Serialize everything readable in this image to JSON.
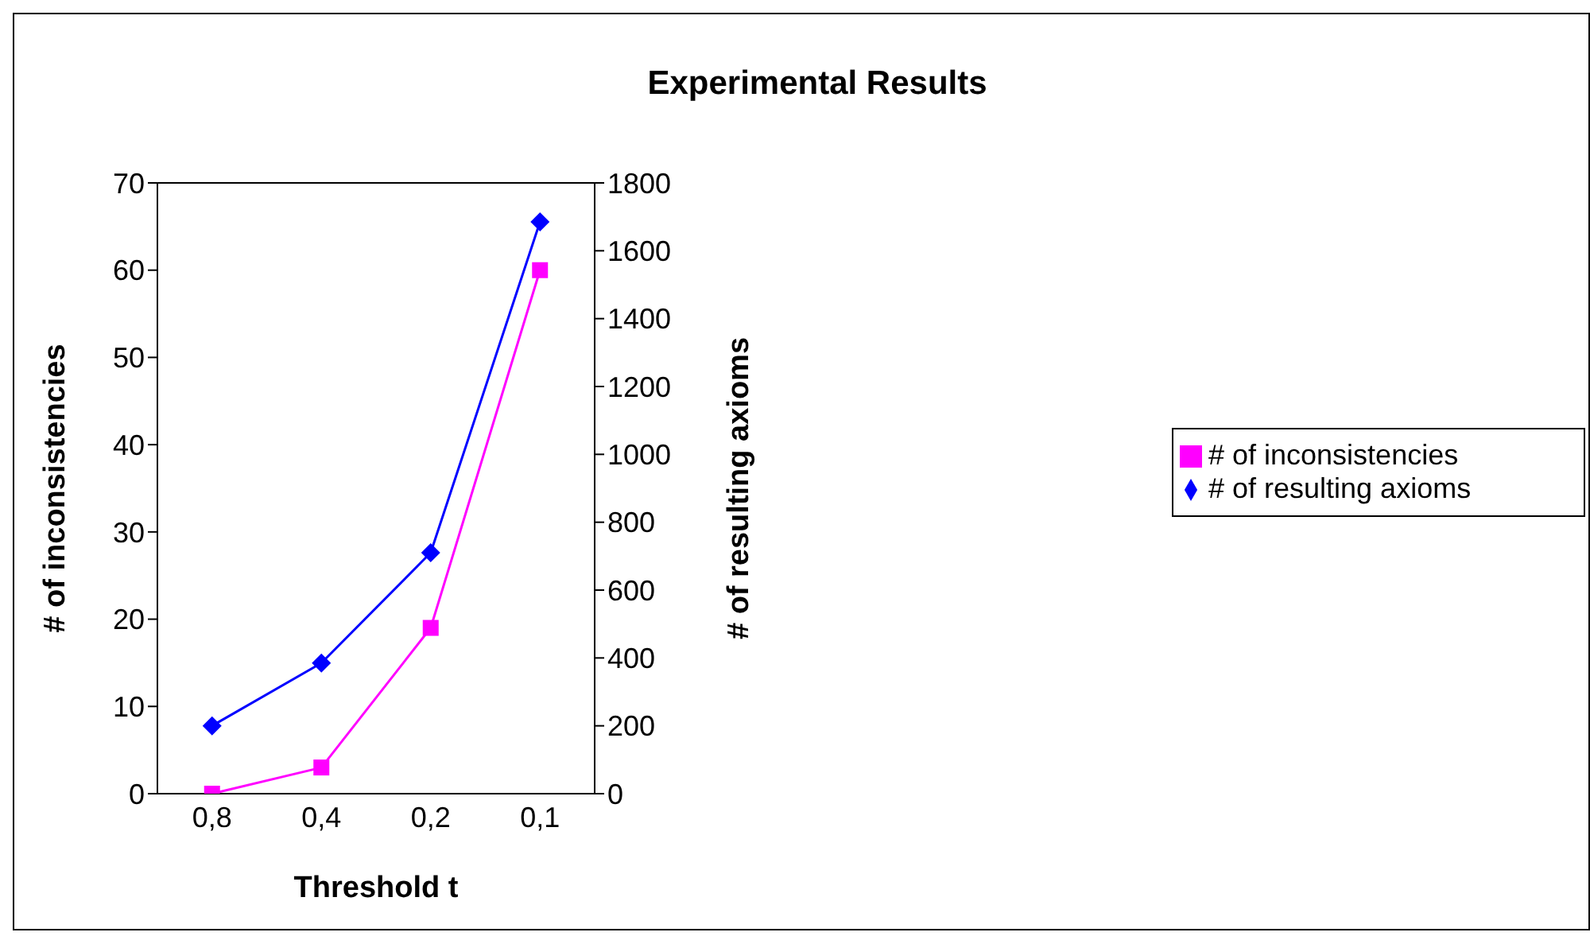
{
  "chart_data": {
    "type": "line",
    "title": "Experimental Results",
    "xlabel": "Threshold t",
    "ylabel": "# of inconsistencies",
    "y2label": "# of resulting axioms",
    "categories": [
      "0,8",
      "0,4",
      "0,2",
      "0,1"
    ],
    "series": [
      {
        "name": "# of inconsistencies",
        "color": "#ff00ff",
        "values": [
          0,
          3,
          19,
          60
        ],
        "marker": "square"
      },
      {
        "name": "# of resulting axioms",
        "color": "#0000ff",
        "values": [
          200,
          385,
          710,
          1685
        ],
        "marker": "diamond",
        "axis": "y2"
      }
    ],
    "ylim": [
      0,
      70
    ],
    "yticks": [
      0,
      10,
      20,
      30,
      40,
      50,
      60,
      70
    ],
    "y2lim": [
      0,
      1800
    ],
    "y2ticks": [
      0,
      200,
      400,
      600,
      800,
      1000,
      1200,
      1400,
      1600,
      1800
    ],
    "grid": false,
    "legend": "right",
    "line_style": "solid"
  }
}
